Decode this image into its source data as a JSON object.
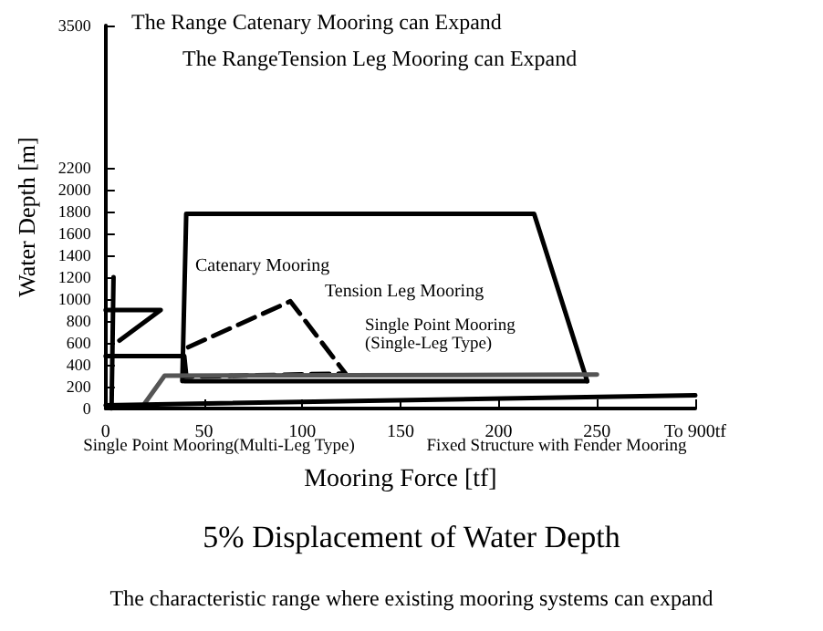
{
  "chart_data": {
    "type": "line",
    "title": "5% Displacement of Water Depth",
    "xlabel": "Mooring Force [tf]",
    "ylabel": "Water Depth [m]",
    "xlim": [
      0,
      300
    ],
    "xticks": [
      0,
      50,
      100,
      150,
      200,
      250,
      {
        "value": 300,
        "label": "To 900tf"
      }
    ],
    "ylim": [
      0,
      3500
    ],
    "yticks": [
      0,
      200,
      400,
      600,
      800,
      1000,
      1200,
      1400,
      1600,
      1800,
      2000,
      2200,
      3500
    ],
    "grid": false,
    "series": [
      {
        "color": "#000000",
        "line_style": "solid",
        "x": [
          39,
          41,
          218,
          245
        ],
        "values": [
          250,
          1780,
          1780,
          250
        ]
      },
      {
        "color": "#000000",
        "line_style": "solid",
        "x": [
          40,
          245
        ],
        "values": [
          250,
          250
        ]
      },
      {
        "color": "#000000",
        "line_style": "solid",
        "x": [
          0,
          28,
          7
        ],
        "values": [
          900,
          900,
          620
        ]
      },
      {
        "color": "#000000",
        "line_style": "solid",
        "x": [
          3,
          4
        ],
        "values": [
          0,
          1200
        ]
      },
      {
        "color": "#000000",
        "line_style": "dashed",
        "x": [
          42,
          94,
          122,
          40
        ],
        "values": [
          560,
          980,
          320,
          290
        ]
      },
      {
        "color": "#000000",
        "line_style": "solid",
        "x": [
          0,
          40,
          41
        ],
        "values": [
          480,
          480,
          300
        ]
      },
      {
        "color": "#555555",
        "line_style": "solid",
        "x": [
          20,
          30,
          250
        ],
        "values": [
          50,
          300,
          310
        ]
      },
      {
        "color": "#000000",
        "line_style": "solid",
        "x": [
          0,
          300
        ],
        "values": [
          30,
          120
        ]
      }
    ],
    "annotations": [
      "The Range Catenary Mooring can Expand",
      "The RangeTension Leg Mooring can Expand",
      "Catenary Mooring",
      "Tension Leg Mooring",
      "Single Point Mooring (Single-Leg Type)",
      "Single Point Mooring(Multi-Leg Type)",
      "Fixed Structure with Fender Mooring",
      "The characteristic range where existing mooring systems can expand"
    ]
  }
}
